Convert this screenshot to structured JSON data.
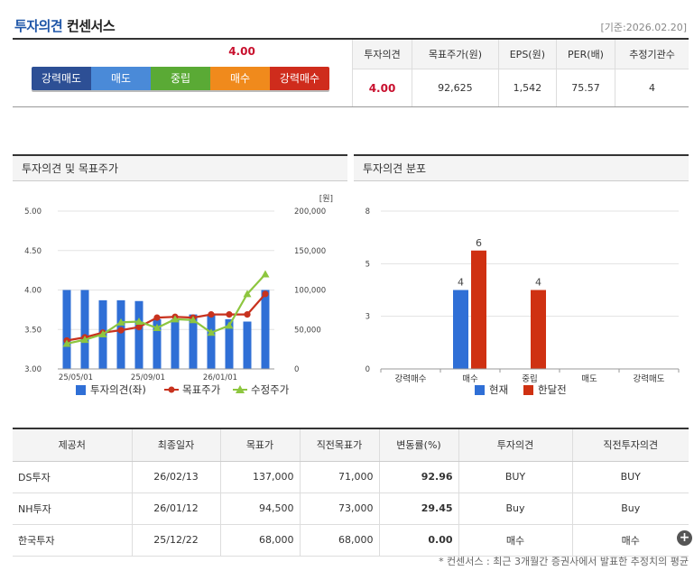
{
  "header": {
    "title_blue": "투자의견",
    "title_dark": "컨센서스",
    "date": "[기준:2026.02.20]"
  },
  "opinion_bar": {
    "value": "4.00",
    "segments": [
      "강력매도",
      "매도",
      "중립",
      "매수",
      "강력매수"
    ]
  },
  "summary": {
    "headers": [
      "투자의견",
      "목표주가(원)",
      "EPS(원)",
      "PER(배)",
      "추정기관수"
    ],
    "values": [
      "4.00",
      "92,625",
      "1,542",
      "75.57",
      "4"
    ]
  },
  "panels": {
    "left_title": "투자의견 및 목표주가",
    "right_title": "투자의견 분포"
  },
  "chart_data": [
    {
      "type": "bar+line",
      "title": "투자의견 및 목표주가",
      "ylabel_right": "[원]",
      "ylim_left": [
        3.0,
        5.0
      ],
      "ylim_right": [
        0,
        200000
      ],
      "left_ticks": [
        "3.00",
        "3.50",
        "4.00",
        "4.50",
        "5.00"
      ],
      "right_ticks": [
        "0",
        "50,000",
        "100,000",
        "150,000",
        "200,000"
      ],
      "x_tick_labels": [
        "25/05/01",
        "25/09/01",
        "26/01/01"
      ],
      "x_tick_index": [
        1,
        5,
        9
      ],
      "series": [
        {
          "name": "투자의견(좌)",
          "kind": "bar",
          "color": "#2f6fd6",
          "values": [
            4.0,
            4.0,
            3.87,
            3.87,
            3.86,
            3.63,
            3.63,
            3.69,
            3.69,
            3.63,
            3.6,
            4.0
          ]
        },
        {
          "name": "목표주가",
          "kind": "line",
          "color": "#c8321e",
          "values": [
            36000,
            40000,
            46000,
            49000,
            53000,
            65000,
            66000,
            65000,
            69000,
            69000,
            69000,
            95000
          ]
        },
        {
          "name": "수정주가",
          "kind": "line",
          "color": "#8dc63f",
          "values": [
            32000,
            37000,
            44000,
            59000,
            60000,
            52000,
            63000,
            62000,
            46000,
            55000,
            95000,
            120000
          ]
        }
      ],
      "legend": [
        "투자의견(좌)",
        "목표주가",
        "수정주가"
      ]
    },
    {
      "type": "bar",
      "title": "투자의견 분포",
      "categories": [
        "강력매수",
        "매수",
        "중립",
        "매도",
        "강력매도"
      ],
      "ylim": [
        0,
        8
      ],
      "y_ticks": [
        "0",
        "3",
        "5",
        "8"
      ],
      "series": [
        {
          "name": "현재",
          "color": "#2f6fd6",
          "values": [
            0,
            4,
            0,
            0,
            0
          ]
        },
        {
          "name": "한달전",
          "color": "#cf3112",
          "values": [
            0,
            6,
            4,
            0,
            0
          ]
        }
      ],
      "legend": [
        "현재",
        "한달전"
      ]
    }
  ],
  "table": {
    "headers": [
      "제공처",
      "최종일자",
      "목표가",
      "직전목표가",
      "변동률(%)",
      "투자의견",
      "직전투자의견"
    ],
    "rows": [
      [
        "DS투자",
        "26/02/13",
        "137,000",
        "71,000",
        "92.96",
        "BUY",
        "BUY"
      ],
      [
        "NH투자",
        "26/01/12",
        "94,500",
        "73,000",
        "29.45",
        "Buy",
        "Buy"
      ],
      [
        "한국투자",
        "25/12/22",
        "68,000",
        "68,000",
        "0.00",
        "매수",
        "매수"
      ]
    ]
  },
  "footnote": "* 컨센서스 : 최근 3개월간 증권사에서 발표한 추정치의 평균"
}
